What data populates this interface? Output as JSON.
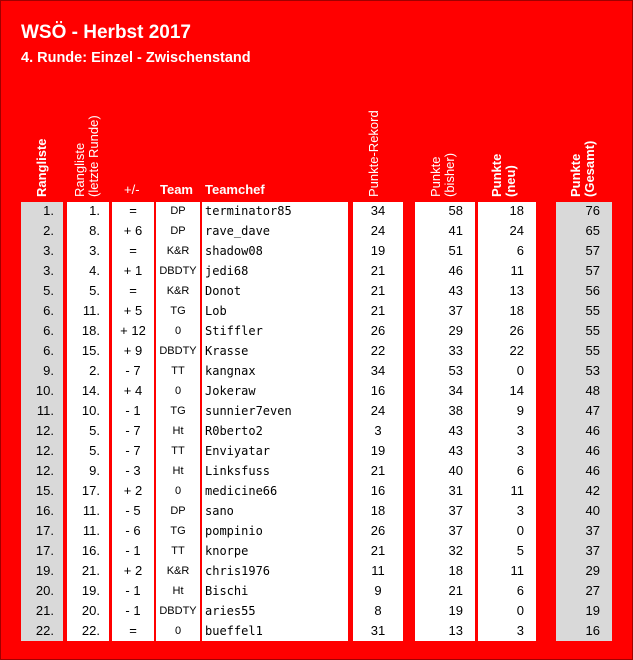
{
  "title": "WSÖ - Herbst 2017",
  "subtitle": "4. Runde: Einzel - Zwischenstand",
  "headers": {
    "rangliste": "Rangliste",
    "rangliste_letzte_l1": "Rangliste",
    "rangliste_letzte_l2": "(letzte Runde)",
    "plusminus": "+/-",
    "team": "Team",
    "teamchef": "Teamchef",
    "punkte_rekord": "Punkte-Rekord",
    "punkte_bisher_l1": "Punkte",
    "punkte_bisher_l2": "(bisher)",
    "punkte_neu_l1": "Punkte",
    "punkte_neu_l2": "(neu)",
    "punkte_gesamt_l1": "Punkte",
    "punkte_gesamt_l2": "(Gesamt)"
  },
  "colors": {
    "background": "#ff0000",
    "rank_column": "#d9d9d9",
    "total_column": "#d9d9d9",
    "white_column": "#ffffff",
    "header_text": "#ffffff"
  },
  "rows": [
    {
      "rank": "1.",
      "prev": "1.",
      "diff": "=",
      "team": "DP",
      "chef": "terminator85",
      "rekord": "34",
      "bisher": "58",
      "neu": "18",
      "gesamt": "76"
    },
    {
      "rank": "2.",
      "prev": "8.",
      "diff": "+ 6",
      "team": "DP",
      "chef": "rave_dave",
      "rekord": "24",
      "bisher": "41",
      "neu": "24",
      "gesamt": "65"
    },
    {
      "rank": "3.",
      "prev": "3.",
      "diff": "=",
      "team": "K&R",
      "chef": "shadow08",
      "rekord": "19",
      "bisher": "51",
      "neu": "6",
      "gesamt": "57"
    },
    {
      "rank": "3.",
      "prev": "4.",
      "diff": "+ 1",
      "team": "DBDTY",
      "chef": "jedi68",
      "rekord": "21",
      "bisher": "46",
      "neu": "11",
      "gesamt": "57"
    },
    {
      "rank": "5.",
      "prev": "5.",
      "diff": "=",
      "team": "K&R",
      "chef": "Donot",
      "rekord": "21",
      "bisher": "43",
      "neu": "13",
      "gesamt": "56"
    },
    {
      "rank": "6.",
      "prev": "11.",
      "diff": "+ 5",
      "team": "TG",
      "chef": "Lob",
      "rekord": "21",
      "bisher": "37",
      "neu": "18",
      "gesamt": "55"
    },
    {
      "rank": "6.",
      "prev": "18.",
      "diff": "+ 12",
      "team": "0",
      "chef": "Stiffler",
      "rekord": "26",
      "bisher": "29",
      "neu": "26",
      "gesamt": "55"
    },
    {
      "rank": "6.",
      "prev": "15.",
      "diff": "+ 9",
      "team": "DBDTY",
      "chef": "Krasse",
      "rekord": "22",
      "bisher": "33",
      "neu": "22",
      "gesamt": "55"
    },
    {
      "rank": "9.",
      "prev": "2.",
      "diff": "- 7",
      "team": "TT",
      "chef": "kangnax",
      "rekord": "34",
      "bisher": "53",
      "neu": "0",
      "gesamt": "53"
    },
    {
      "rank": "10.",
      "prev": "14.",
      "diff": "+ 4",
      "team": "0",
      "chef": "Jokeraw",
      "rekord": "16",
      "bisher": "34",
      "neu": "14",
      "gesamt": "48"
    },
    {
      "rank": "11.",
      "prev": "10.",
      "diff": "- 1",
      "team": "TG",
      "chef": "sunnier7even",
      "rekord": "24",
      "bisher": "38",
      "neu": "9",
      "gesamt": "47"
    },
    {
      "rank": "12.",
      "prev": "5.",
      "diff": "- 7",
      "team": "Ht",
      "chef": "R0berto2",
      "rekord": "3",
      "bisher": "43",
      "neu": "3",
      "gesamt": "46"
    },
    {
      "rank": "12.",
      "prev": "5.",
      "diff": "- 7",
      "team": "TT",
      "chef": "Enviyatar",
      "rekord": "19",
      "bisher": "43",
      "neu": "3",
      "gesamt": "46"
    },
    {
      "rank": "12.",
      "prev": "9.",
      "diff": "- 3",
      "team": "Ht",
      "chef": "Linksfuss",
      "rekord": "21",
      "bisher": "40",
      "neu": "6",
      "gesamt": "46"
    },
    {
      "rank": "15.",
      "prev": "17.",
      "diff": "+ 2",
      "team": "0",
      "chef": "medicine66",
      "rekord": "16",
      "bisher": "31",
      "neu": "11",
      "gesamt": "42"
    },
    {
      "rank": "16.",
      "prev": "11.",
      "diff": "- 5",
      "team": "DP",
      "chef": "sano",
      "rekord": "18",
      "bisher": "37",
      "neu": "3",
      "gesamt": "40"
    },
    {
      "rank": "17.",
      "prev": "11.",
      "diff": "- 6",
      "team": "TG",
      "chef": "pompinio",
      "rekord": "26",
      "bisher": "37",
      "neu": "0",
      "gesamt": "37"
    },
    {
      "rank": "17.",
      "prev": "16.",
      "diff": "- 1",
      "team": "TT",
      "chef": "knorpe",
      "rekord": "21",
      "bisher": "32",
      "neu": "5",
      "gesamt": "37"
    },
    {
      "rank": "19.",
      "prev": "21.",
      "diff": "+ 2",
      "team": "K&R",
      "chef": "chris1976",
      "rekord": "11",
      "bisher": "18",
      "neu": "11",
      "gesamt": "29"
    },
    {
      "rank": "20.",
      "prev": "19.",
      "diff": "- 1",
      "team": "Ht",
      "chef": "Bischi",
      "rekord": "9",
      "bisher": "21",
      "neu": "6",
      "gesamt": "27"
    },
    {
      "rank": "21.",
      "prev": "20.",
      "diff": "- 1",
      "team": "DBDTY",
      "chef": "aries55",
      "rekord": "8",
      "bisher": "19",
      "neu": "0",
      "gesamt": "19"
    },
    {
      "rank": "22.",
      "prev": "22.",
      "diff": "=",
      "team": "0",
      "chef": "bueffel1",
      "rekord": "31",
      "bisher": "13",
      "neu": "3",
      "gesamt": "16"
    }
  ]
}
